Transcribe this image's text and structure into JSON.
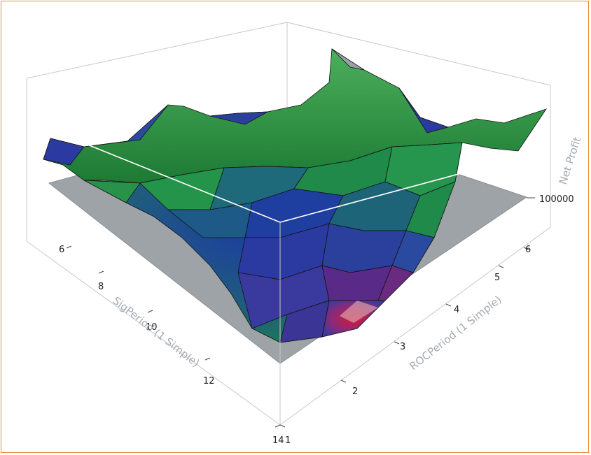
{
  "chart_data": {
    "type": "surface",
    "xlabel": "SigPeriod (1 Simple)",
    "ylabel": "ROCPeriod (1 Simple)",
    "zlabel": "Net Profit",
    "x_ticks": [
      "6",
      "8",
      "10",
      "12",
      "14"
    ],
    "y_ticks": [
      "1",
      "2",
      "3",
      "4",
      "5",
      "6"
    ],
    "z_ticks": [
      "100000"
    ],
    "reference_plane_z": 100000,
    "colors": {
      "high": "#1f8a3a",
      "mid": "#2a3aa0",
      "low": "#c0183a",
      "plane": "#9ea3a8",
      "box": "#c8c8c8",
      "frame": "#e8893a"
    }
  }
}
